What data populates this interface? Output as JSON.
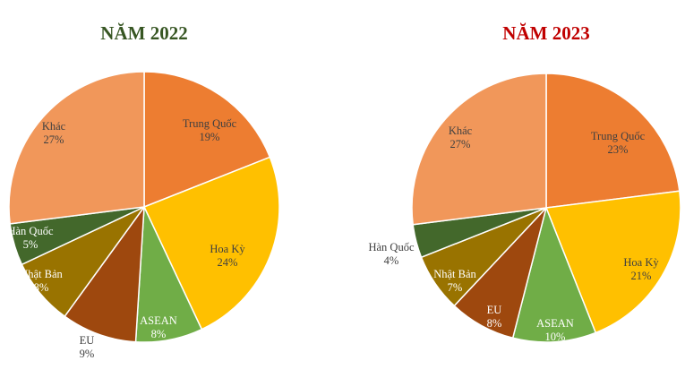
{
  "chart_data": [
    {
      "type": "pie",
      "title": "NĂM 2022",
      "title_color": "#375623",
      "categories": [
        "Trung Quốc",
        "Hoa Kỳ",
        "ASEAN",
        "EU",
        "Nhật Bản",
        "Hàn Quốc",
        "Khác"
      ],
      "values": [
        19,
        24,
        8,
        9,
        8,
        5,
        27
      ],
      "labels": [
        "19%",
        "24%",
        "8%",
        "9%",
        "8%",
        "5%",
        "27%"
      ],
      "colors": [
        "#ED7D31",
        "#FFC000",
        "#70AD47",
        "#9E480E",
        "#997300",
        "#43682B",
        "#F1975A"
      ]
    },
    {
      "type": "pie",
      "title": "NĂM 2023",
      "title_color": "#C00000",
      "categories": [
        "Trung Quốc",
        "Hoa Kỳ",
        "ASEAN",
        "EU",
        "Nhật Bản",
        "Hàn Quốc",
        "Khác"
      ],
      "values": [
        23,
        21,
        10,
        8,
        7,
        4,
        27
      ],
      "labels": [
        "23%",
        "21%",
        "10%",
        "8%",
        "7%",
        "4%",
        "27%"
      ],
      "colors": [
        "#ED7D31",
        "#FFC000",
        "#70AD47",
        "#9E480E",
        "#997300",
        "#43682B",
        "#F1975A"
      ]
    }
  ]
}
